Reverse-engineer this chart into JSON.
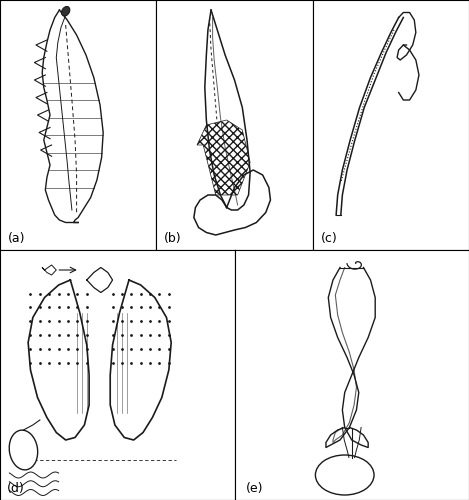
{
  "figure_width": 4.69,
  "figure_height": 5.0,
  "dpi": 100,
  "background_color": "#ffffff",
  "border_color": "#000000",
  "border_linewidth": 0.8,
  "panel_labels": [
    "(a)",
    "(b)",
    "(c)",
    "(d)",
    "(e)"
  ],
  "label_fontsize": 9,
  "label_color": "#000000",
  "lc": "#1a1a1a"
}
